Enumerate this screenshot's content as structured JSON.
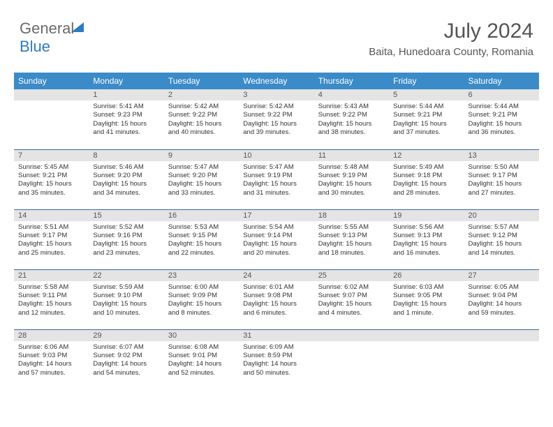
{
  "logo": {
    "word1": "General",
    "word2": "Blue"
  },
  "header": {
    "month": "July 2024",
    "location": "Baita, Hunedoara County, Romania"
  },
  "dayHeaders": [
    "Sunday",
    "Monday",
    "Tuesday",
    "Wednesday",
    "Thursday",
    "Friday",
    "Saturday"
  ],
  "colors": {
    "headerBg": "#3b8bc9",
    "rowDivider": "#3b6a9a",
    "dayBar": "#e4e4e4",
    "logoBlue": "#2f7bbf",
    "titleText": "#555"
  },
  "weeks": [
    [
      {
        "n": "",
        "l1": "",
        "l2": "",
        "l3": "",
        "l4": ""
      },
      {
        "n": "1",
        "l1": "Sunrise: 5:41 AM",
        "l2": "Sunset: 9:23 PM",
        "l3": "Daylight: 15 hours",
        "l4": "and 41 minutes."
      },
      {
        "n": "2",
        "l1": "Sunrise: 5:42 AM",
        "l2": "Sunset: 9:22 PM",
        "l3": "Daylight: 15 hours",
        "l4": "and 40 minutes."
      },
      {
        "n": "3",
        "l1": "Sunrise: 5:42 AM",
        "l2": "Sunset: 9:22 PM",
        "l3": "Daylight: 15 hours",
        "l4": "and 39 minutes."
      },
      {
        "n": "4",
        "l1": "Sunrise: 5:43 AM",
        "l2": "Sunset: 9:22 PM",
        "l3": "Daylight: 15 hours",
        "l4": "and 38 minutes."
      },
      {
        "n": "5",
        "l1": "Sunrise: 5:44 AM",
        "l2": "Sunset: 9:21 PM",
        "l3": "Daylight: 15 hours",
        "l4": "and 37 minutes."
      },
      {
        "n": "6",
        "l1": "Sunrise: 5:44 AM",
        "l2": "Sunset: 9:21 PM",
        "l3": "Daylight: 15 hours",
        "l4": "and 36 minutes."
      }
    ],
    [
      {
        "n": "7",
        "l1": "Sunrise: 5:45 AM",
        "l2": "Sunset: 9:21 PM",
        "l3": "Daylight: 15 hours",
        "l4": "and 35 minutes."
      },
      {
        "n": "8",
        "l1": "Sunrise: 5:46 AM",
        "l2": "Sunset: 9:20 PM",
        "l3": "Daylight: 15 hours",
        "l4": "and 34 minutes."
      },
      {
        "n": "9",
        "l1": "Sunrise: 5:47 AM",
        "l2": "Sunset: 9:20 PM",
        "l3": "Daylight: 15 hours",
        "l4": "and 33 minutes."
      },
      {
        "n": "10",
        "l1": "Sunrise: 5:47 AM",
        "l2": "Sunset: 9:19 PM",
        "l3": "Daylight: 15 hours",
        "l4": "and 31 minutes."
      },
      {
        "n": "11",
        "l1": "Sunrise: 5:48 AM",
        "l2": "Sunset: 9:19 PM",
        "l3": "Daylight: 15 hours",
        "l4": "and 30 minutes."
      },
      {
        "n": "12",
        "l1": "Sunrise: 5:49 AM",
        "l2": "Sunset: 9:18 PM",
        "l3": "Daylight: 15 hours",
        "l4": "and 28 minutes."
      },
      {
        "n": "13",
        "l1": "Sunrise: 5:50 AM",
        "l2": "Sunset: 9:17 PM",
        "l3": "Daylight: 15 hours",
        "l4": "and 27 minutes."
      }
    ],
    [
      {
        "n": "14",
        "l1": "Sunrise: 5:51 AM",
        "l2": "Sunset: 9:17 PM",
        "l3": "Daylight: 15 hours",
        "l4": "and 25 minutes."
      },
      {
        "n": "15",
        "l1": "Sunrise: 5:52 AM",
        "l2": "Sunset: 9:16 PM",
        "l3": "Daylight: 15 hours",
        "l4": "and 23 minutes."
      },
      {
        "n": "16",
        "l1": "Sunrise: 5:53 AM",
        "l2": "Sunset: 9:15 PM",
        "l3": "Daylight: 15 hours",
        "l4": "and 22 minutes."
      },
      {
        "n": "17",
        "l1": "Sunrise: 5:54 AM",
        "l2": "Sunset: 9:14 PM",
        "l3": "Daylight: 15 hours",
        "l4": "and 20 minutes."
      },
      {
        "n": "18",
        "l1": "Sunrise: 5:55 AM",
        "l2": "Sunset: 9:13 PM",
        "l3": "Daylight: 15 hours",
        "l4": "and 18 minutes."
      },
      {
        "n": "19",
        "l1": "Sunrise: 5:56 AM",
        "l2": "Sunset: 9:13 PM",
        "l3": "Daylight: 15 hours",
        "l4": "and 16 minutes."
      },
      {
        "n": "20",
        "l1": "Sunrise: 5:57 AM",
        "l2": "Sunset: 9:12 PM",
        "l3": "Daylight: 15 hours",
        "l4": "and 14 minutes."
      }
    ],
    [
      {
        "n": "21",
        "l1": "Sunrise: 5:58 AM",
        "l2": "Sunset: 9:11 PM",
        "l3": "Daylight: 15 hours",
        "l4": "and 12 minutes."
      },
      {
        "n": "22",
        "l1": "Sunrise: 5:59 AM",
        "l2": "Sunset: 9:10 PM",
        "l3": "Daylight: 15 hours",
        "l4": "and 10 minutes."
      },
      {
        "n": "23",
        "l1": "Sunrise: 6:00 AM",
        "l2": "Sunset: 9:09 PM",
        "l3": "Daylight: 15 hours",
        "l4": "and 8 minutes."
      },
      {
        "n": "24",
        "l1": "Sunrise: 6:01 AM",
        "l2": "Sunset: 9:08 PM",
        "l3": "Daylight: 15 hours",
        "l4": "and 6 minutes."
      },
      {
        "n": "25",
        "l1": "Sunrise: 6:02 AM",
        "l2": "Sunset: 9:07 PM",
        "l3": "Daylight: 15 hours",
        "l4": "and 4 minutes."
      },
      {
        "n": "26",
        "l1": "Sunrise: 6:03 AM",
        "l2": "Sunset: 9:05 PM",
        "l3": "Daylight: 15 hours",
        "l4": "and 1 minute."
      },
      {
        "n": "27",
        "l1": "Sunrise: 6:05 AM",
        "l2": "Sunset: 9:04 PM",
        "l3": "Daylight: 14 hours",
        "l4": "and 59 minutes."
      }
    ],
    [
      {
        "n": "28",
        "l1": "Sunrise: 6:06 AM",
        "l2": "Sunset: 9:03 PM",
        "l3": "Daylight: 14 hours",
        "l4": "and 57 minutes."
      },
      {
        "n": "29",
        "l1": "Sunrise: 6:07 AM",
        "l2": "Sunset: 9:02 PM",
        "l3": "Daylight: 14 hours",
        "l4": "and 54 minutes."
      },
      {
        "n": "30",
        "l1": "Sunrise: 6:08 AM",
        "l2": "Sunset: 9:01 PM",
        "l3": "Daylight: 14 hours",
        "l4": "and 52 minutes."
      },
      {
        "n": "31",
        "l1": "Sunrise: 6:09 AM",
        "l2": "Sunset: 8:59 PM",
        "l3": "Daylight: 14 hours",
        "l4": "and 50 minutes."
      },
      {
        "n": "",
        "l1": "",
        "l2": "",
        "l3": "",
        "l4": ""
      },
      {
        "n": "",
        "l1": "",
        "l2": "",
        "l3": "",
        "l4": ""
      },
      {
        "n": "",
        "l1": "",
        "l2": "",
        "l3": "",
        "l4": ""
      }
    ]
  ]
}
